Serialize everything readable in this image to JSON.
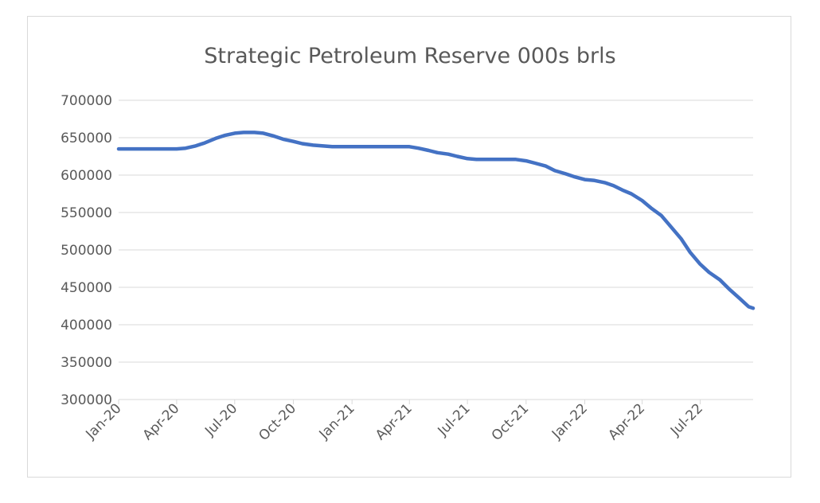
{
  "chart_data": {
    "type": "line",
    "title": "Strategic Petroleum Reserve 000s brls",
    "xlabel": "",
    "ylabel": "",
    "ylim": [
      300000,
      700000
    ],
    "y_ticks": [
      300000,
      350000,
      400000,
      450000,
      500000,
      550000,
      600000,
      650000,
      700000
    ],
    "x_tick_labels": [
      "Jan-20",
      "Apr-20",
      "Jul-20",
      "Oct-20",
      "Jan-21",
      "Apr-21",
      "Jul-21",
      "Oct-21",
      "Jan-22",
      "Apr-22",
      "Jul-22"
    ],
    "grid": "horizontal",
    "legend": "none",
    "line_color": "#4472c4",
    "series": [
      {
        "points": [
          [
            "2020-01-01",
            635000
          ],
          [
            "2020-02-01",
            635000
          ],
          [
            "2020-03-01",
            635000
          ],
          [
            "2020-04-01",
            635000
          ],
          [
            "2020-04-15",
            636000
          ],
          [
            "2020-05-01",
            639000
          ],
          [
            "2020-05-15",
            643000
          ],
          [
            "2020-06-01",
            649000
          ],
          [
            "2020-06-15",
            653000
          ],
          [
            "2020-07-01",
            656000
          ],
          [
            "2020-07-15",
            657000
          ],
          [
            "2020-08-01",
            657000
          ],
          [
            "2020-08-15",
            656000
          ],
          [
            "2020-09-01",
            652000
          ],
          [
            "2020-09-15",
            648000
          ],
          [
            "2020-10-01",
            645000
          ],
          [
            "2020-10-15",
            642000
          ],
          [
            "2020-11-01",
            640000
          ],
          [
            "2020-11-15",
            639000
          ],
          [
            "2020-12-01",
            638000
          ],
          [
            "2021-01-01",
            638000
          ],
          [
            "2021-02-01",
            638000
          ],
          [
            "2021-03-01",
            638000
          ],
          [
            "2021-04-01",
            638000
          ],
          [
            "2021-04-15",
            636000
          ],
          [
            "2021-05-01",
            633000
          ],
          [
            "2021-05-15",
            630000
          ],
          [
            "2021-06-01",
            628000
          ],
          [
            "2021-06-15",
            625000
          ],
          [
            "2021-07-01",
            622000
          ],
          [
            "2021-07-15",
            621000
          ],
          [
            "2021-08-01",
            621000
          ],
          [
            "2021-09-01",
            621000
          ],
          [
            "2021-09-15",
            621000
          ],
          [
            "2021-10-01",
            619000
          ],
          [
            "2021-10-15",
            616000
          ],
          [
            "2021-11-01",
            612000
          ],
          [
            "2021-11-15",
            606000
          ],
          [
            "2021-12-01",
            602000
          ],
          [
            "2021-12-15",
            598000
          ],
          [
            "2022-01-01",
            594000
          ],
          [
            "2022-01-15",
            593000
          ],
          [
            "2022-02-01",
            590000
          ],
          [
            "2022-02-15",
            586000
          ],
          [
            "2022-03-01",
            580000
          ],
          [
            "2022-03-15",
            575000
          ],
          [
            "2022-04-01",
            566000
          ],
          [
            "2022-04-15",
            556000
          ],
          [
            "2022-05-01",
            546000
          ],
          [
            "2022-05-15",
            532000
          ],
          [
            "2022-06-01",
            515000
          ],
          [
            "2022-06-15",
            497000
          ],
          [
            "2022-07-01",
            481000
          ],
          [
            "2022-07-15",
            470000
          ],
          [
            "2022-08-01",
            460000
          ],
          [
            "2022-08-15",
            448000
          ],
          [
            "2022-09-01",
            435000
          ],
          [
            "2022-09-15",
            424000
          ],
          [
            "2022-09-22",
            422000
          ]
        ]
      }
    ]
  }
}
